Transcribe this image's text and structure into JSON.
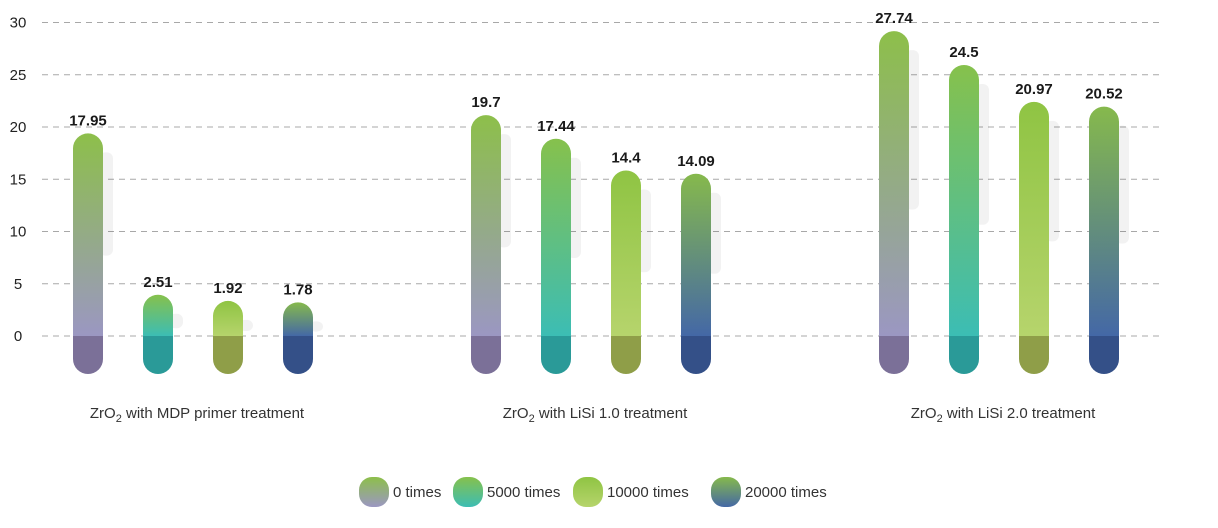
{
  "chart_data": {
    "type": "bar",
    "ylim": [
      0,
      30
    ],
    "yticks": [
      0,
      5,
      10,
      15,
      20,
      25,
      30
    ],
    "grid": "dashed horizontal",
    "legend_placement": "bottom-center",
    "groups": [
      {
        "base": "ZrO",
        "sub": "2",
        "suffix": " with MDP primer treatment"
      },
      {
        "base": "ZrO",
        "sub": "2",
        "suffix": " with LiSi 1.0 treatment"
      },
      {
        "base": "ZrO",
        "sub": "2",
        "suffix": " with LiSi 2.0 treatment"
      }
    ],
    "series": [
      {
        "name": "0 times",
        "values": [
          17.95,
          19.7,
          27.74
        ],
        "value_labels": [
          "17.95",
          "19.7",
          "27.74"
        ],
        "color_top": "#8dbf4a",
        "color_bottom": "#9b97c2",
        "color_base": "#7b7098"
      },
      {
        "name": "5000 times",
        "values": [
          2.51,
          17.44,
          24.5
        ],
        "value_labels": [
          "2.51",
          "17.44",
          "24.5"
        ],
        "color_top": "#86c14c",
        "color_bottom": "#3cbdb4",
        "color_base": "#2a9a98"
      },
      {
        "name": "10000 times",
        "values": [
          1.92,
          14.4,
          20.97
        ],
        "value_labels": [
          "1.92",
          "14.4",
          "20.97"
        ],
        "color_top": "#8fc443",
        "color_bottom": "#b6d46c",
        "color_base": "#8f9e48"
      },
      {
        "name": "20000 times",
        "values": [
          1.78,
          14.09,
          20.52
        ],
        "value_labels": [
          "1.78",
          "14.09",
          "20.52"
        ],
        "color_top": "#86b94c",
        "color_bottom": "#4468a6",
        "color_base": "#345088"
      }
    ]
  }
}
